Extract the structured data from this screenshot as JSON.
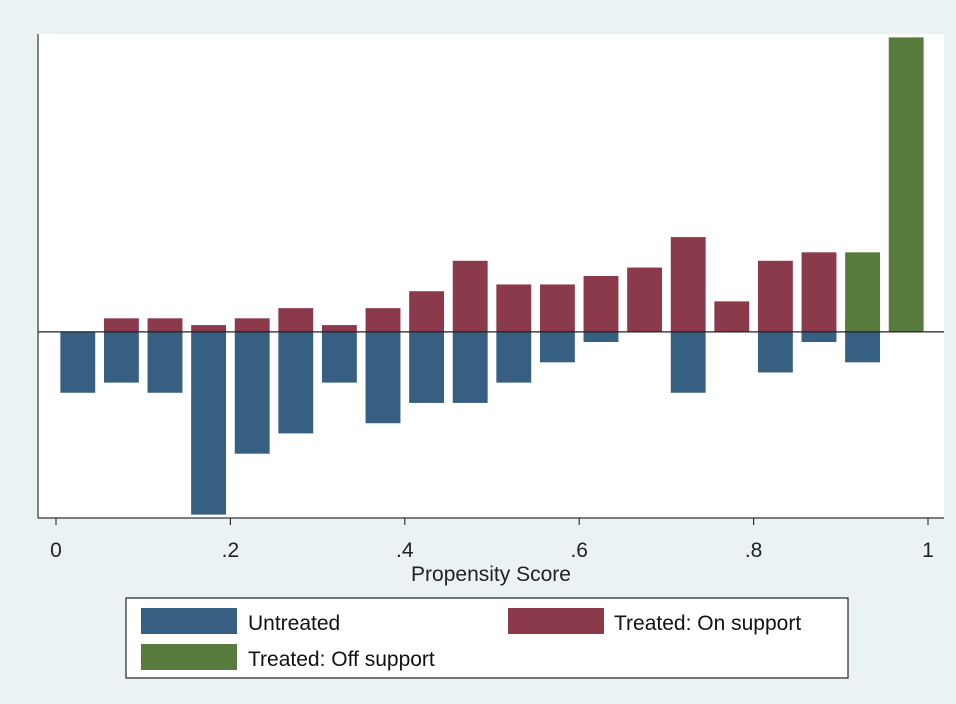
{
  "chart_data": {
    "type": "bar",
    "xlabel": "Propensity Score",
    "ylabel": "",
    "xlim": [
      0,
      1
    ],
    "x_ticks": [
      "0",
      ".2",
      ".4",
      ".6",
      ".8",
      "1"
    ],
    "x_tick_values": [
      0,
      0.2,
      0.4,
      0.6,
      0.8,
      1
    ],
    "ylim": [
      -0.55,
      0.88
    ],
    "baseline": 0,
    "bin_width": 0.05,
    "grid": false,
    "legend_position": "bottom",
    "legend": [
      "Untreated",
      "Treated: On support",
      "Treated: Off support"
    ],
    "colors": {
      "Untreated": "#365f82",
      "Treated: On support": "#8b3a4b",
      "Treated: Off support": "#577a3d"
    },
    "series": [
      {
        "name": "Untreated",
        "direction": "below",
        "x": [
          0.025,
          0.075,
          0.125,
          0.175,
          0.225,
          0.275,
          0.325,
          0.375,
          0.425,
          0.475,
          0.525,
          0.575,
          0.625,
          0.725,
          0.825,
          0.875,
          0.925
        ],
        "values": [
          0.18,
          0.15,
          0.18,
          0.54,
          0.36,
          0.3,
          0.15,
          0.27,
          0.21,
          0.21,
          0.15,
          0.09,
          0.03,
          0.18,
          0.12,
          0.03,
          0.09
        ]
      },
      {
        "name": "Treated: On support",
        "direction": "above",
        "x": [
          0.075,
          0.125,
          0.175,
          0.225,
          0.275,
          0.325,
          0.375,
          0.425,
          0.475,
          0.525,
          0.575,
          0.625,
          0.675,
          0.725,
          0.775,
          0.825,
          0.875,
          0.925
        ],
        "values": [
          0.04,
          0.04,
          0.02,
          0.04,
          0.07,
          0.02,
          0.07,
          0.12,
          0.21,
          0.14,
          0.14,
          0.165,
          0.19,
          0.28,
          0.09,
          0.21,
          0.235,
          0.04
        ]
      },
      {
        "name": "Treated: Off support",
        "direction": "above",
        "x": [
          0.925,
          0.975
        ],
        "values": [
          0.235,
          0.87
        ]
      }
    ]
  }
}
